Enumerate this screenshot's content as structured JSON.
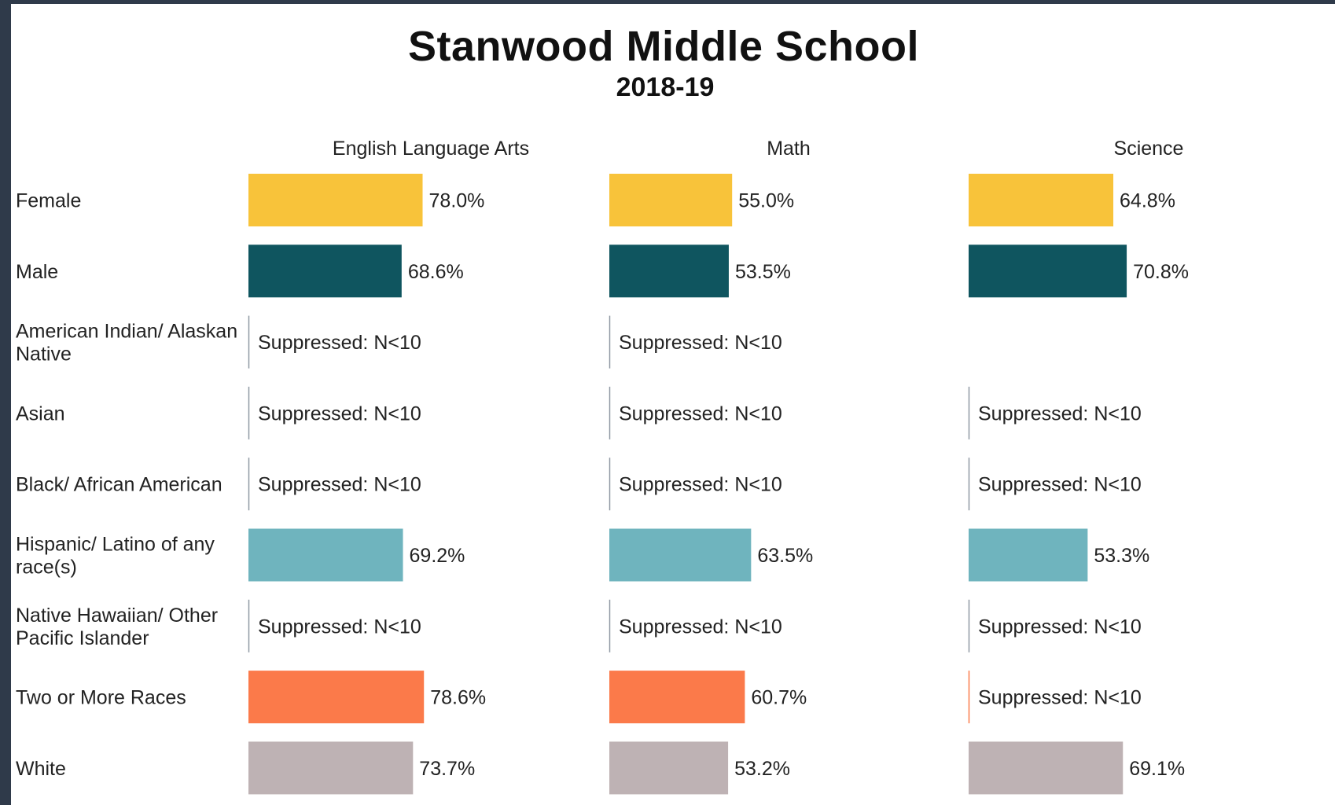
{
  "title": "Stanwood Middle School",
  "subtitle": "2018-19",
  "colors": {
    "Female": "#f8c33a",
    "Male": "#0f555f",
    "Hispanic": "#6fb4be",
    "TwoOrMore": "#fb7a4a",
    "White": "#beb2b4",
    "axis": "#8a8a8a",
    "text": "#222222"
  },
  "chart_data": {
    "type": "bar",
    "orientation": "horizontal",
    "panels": [
      "English Language Arts",
      "Math",
      "Science"
    ],
    "categories": [
      "Female",
      "Male",
      "American Indian/ Alaskan Native",
      "Asian",
      "Black/ African American",
      "Hispanic/ Latino of any race(s)",
      "Native Hawaiian/ Other Pacific Islander",
      "Two or More Races",
      "White"
    ],
    "category_lines": [
      [
        "Female"
      ],
      [
        "Male"
      ],
      [
        "American Indian/ Alaskan",
        "Native"
      ],
      [
        "Asian"
      ],
      [
        "Black/ African American"
      ],
      [
        "Hispanic/ Latino of any",
        "race(s)"
      ],
      [
        "Native Hawaiian/ Other",
        "Pacific Islander"
      ],
      [
        "Two or More Races"
      ],
      [
        "White"
      ]
    ],
    "category_colors": [
      "Female",
      "Male",
      "axis",
      "axis",
      "axis",
      "Hispanic",
      "axis",
      "TwoOrMore",
      "White"
    ],
    "series": [
      {
        "name": "English Language Arts",
        "values": [
          78.0,
          68.6,
          null,
          null,
          null,
          69.2,
          null,
          78.6,
          73.7
        ],
        "labels": [
          "78.0%",
          "68.6%",
          "Suppressed: N<10",
          "Suppressed: N<10",
          "Suppressed: N<10",
          "69.2%",
          "Suppressed: N<10",
          "78.6%",
          "73.7%"
        ]
      },
      {
        "name": "Math",
        "values": [
          55.0,
          53.5,
          null,
          null,
          null,
          63.5,
          null,
          60.7,
          53.2
        ],
        "labels": [
          "55.0%",
          "53.5%",
          "Suppressed: N<10",
          "Suppressed: N<10",
          "Suppressed: N<10",
          "63.5%",
          "Suppressed: N<10",
          "60.7%",
          "53.2%"
        ]
      },
      {
        "name": "Science",
        "values": [
          64.8,
          70.8,
          null,
          null,
          null,
          53.3,
          null,
          null,
          69.1
        ],
        "labels": [
          "64.8%",
          "70.8%",
          "",
          "Suppressed: N<10",
          "Suppressed: N<10",
          "53.3%",
          "Suppressed: N<10",
          "Suppressed: N<10",
          "69.1%"
        ]
      }
    ],
    "xlim": [
      0,
      100
    ],
    "units": "%",
    "grid": false,
    "legend": "none"
  }
}
